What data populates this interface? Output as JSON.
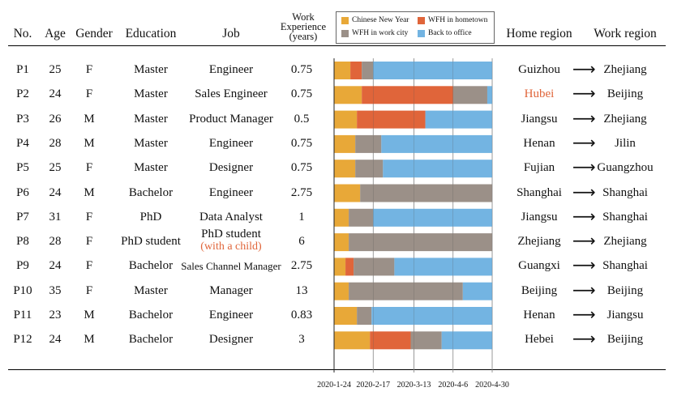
{
  "headers": {
    "no": "No.",
    "age": "Age",
    "gender": "Gender",
    "education": "Education",
    "job": "Job",
    "work_experience": [
      "Work",
      "Experience",
      "(years)"
    ],
    "home_region": "Home region",
    "work_region": "Work region"
  },
  "legend": [
    {
      "label": "Chinese New Year",
      "color": "#e8a838"
    },
    {
      "label": "WFH in hometown",
      "color": "#e0653a"
    },
    {
      "label": "WFH in work city",
      "color": "#9b9088"
    },
    {
      "label": "Back to office",
      "color": "#73b4e2"
    }
  ],
  "arrow_glyph": "⟶",
  "rows": [
    {
      "no": "P1",
      "age": "25",
      "gender": "F",
      "education": "Master",
      "job": "Engineer",
      "job_note": "",
      "exp": "0.75",
      "home": "Guizhou",
      "home_highlight": false,
      "work": "Zhejiang"
    },
    {
      "no": "P2",
      "age": "24",
      "gender": "F",
      "education": "Master",
      "job": "Sales Engineer",
      "job_note": "",
      "exp": "0.75",
      "home": "Hubei",
      "home_highlight": true,
      "work": "Beijing"
    },
    {
      "no": "P3",
      "age": "26",
      "gender": "M",
      "education": "Master",
      "job": "Product Manager",
      "job_note": "",
      "exp": "0.5",
      "home": "Jiangsu",
      "home_highlight": false,
      "work": "Zhejiang"
    },
    {
      "no": "P4",
      "age": "28",
      "gender": "M",
      "education": "Master",
      "job": "Engineer",
      "job_note": "",
      "exp": "0.75",
      "home": "Henan",
      "home_highlight": false,
      "work": "Jilin"
    },
    {
      "no": "P5",
      "age": "25",
      "gender": "F",
      "education": "Master",
      "job": "Designer",
      "job_note": "",
      "exp": "0.75",
      "home": "Fujian",
      "home_highlight": false,
      "work": "Guangzhou"
    },
    {
      "no": "P6",
      "age": "24",
      "gender": "M",
      "education": "Bachelor",
      "job": "Engineer",
      "job_note": "",
      "exp": "2.75",
      "home": "Shanghai",
      "home_highlight": false,
      "work": "Shanghai"
    },
    {
      "no": "P7",
      "age": "31",
      "gender": "F",
      "education": "PhD",
      "job": "Data Analyst",
      "job_note": "",
      "exp": "1",
      "home": "Jiangsu",
      "home_highlight": false,
      "work": "Shanghai"
    },
    {
      "no": "P8",
      "age": "28",
      "gender": "F",
      "education": "PhD student",
      "job": "PhD student",
      "job_note": "(with a child)",
      "exp": "6",
      "home": "Zhejiang",
      "home_highlight": false,
      "work": "Zhejiang"
    },
    {
      "no": "P9",
      "age": "24",
      "gender": "F",
      "education": "Bachelor",
      "job": "Sales Channel Manager",
      "job_note": "",
      "exp": "2.75",
      "home": "Guangxi",
      "home_highlight": false,
      "work": "Shanghai"
    },
    {
      "no": "P10",
      "age": "35",
      "gender": "F",
      "education": "Master",
      "job": "Manager",
      "job_note": "",
      "exp": "13",
      "home": "Beijing",
      "home_highlight": false,
      "work": "Beijing"
    },
    {
      "no": "P11",
      "age": "23",
      "gender": "M",
      "education": "Bachelor",
      "job": "Engineer",
      "job_note": "",
      "exp": "0.83",
      "home": "Henan",
      "home_highlight": false,
      "work": "Jiangsu"
    },
    {
      "no": "P12",
      "age": "24",
      "gender": "M",
      "education": "Bachelor",
      "job": "Designer",
      "job_note": "",
      "exp": "3",
      "home": "Hebei",
      "home_highlight": false,
      "work": "Beijing"
    }
  ],
  "chart_data": {
    "type": "bar",
    "stacked": true,
    "orientation": "horizontal",
    "x_ticks": [
      "2020-1-24",
      "2020-2-17",
      "2020-3-13",
      "2020-4-6",
      "2020-4-30"
    ],
    "x_range": [
      "2020-1-24",
      "2020-4-30"
    ],
    "categories": [
      "P1",
      "P2",
      "P3",
      "P4",
      "P5",
      "P6",
      "P7",
      "P8",
      "P9",
      "P10",
      "P11",
      "P12"
    ],
    "series_order": [
      "Chinese New Year",
      "WFH in hometown",
      "WFH in work city",
      "Back to office"
    ],
    "segments": [
      [
        [
          "Chinese New Year",
          "2020-1-24",
          "2020-2-3"
        ],
        [
          "WFH in hometown",
          "2020-2-3",
          "2020-2-10"
        ],
        [
          "WFH in work city",
          "2020-2-10",
          "2020-2-17"
        ],
        [
          "Back to office",
          "2020-2-17",
          "2020-4-30"
        ]
      ],
      [
        [
          "Chinese New Year",
          "2020-1-24",
          "2020-2-10"
        ],
        [
          "WFH in hometown",
          "2020-2-10",
          "2020-4-6"
        ],
        [
          "WFH in work city",
          "2020-4-6",
          "2020-4-27"
        ],
        [
          "Back to office",
          "2020-4-27",
          "2020-4-30"
        ]
      ],
      [
        [
          "Chinese New Year",
          "2020-1-24",
          "2020-2-7"
        ],
        [
          "WFH in hometown",
          "2020-2-7",
          "2020-3-20"
        ],
        [
          "Back to office",
          "2020-3-20",
          "2020-4-30"
        ]
      ],
      [
        [
          "Chinese New Year",
          "2020-1-24",
          "2020-2-6"
        ],
        [
          "WFH in work city",
          "2020-2-6",
          "2020-2-22"
        ],
        [
          "Back to office",
          "2020-2-22",
          "2020-4-30"
        ]
      ],
      [
        [
          "Chinese New Year",
          "2020-1-24",
          "2020-2-6"
        ],
        [
          "WFH in work city",
          "2020-2-6",
          "2020-2-23"
        ],
        [
          "Back to office",
          "2020-2-23",
          "2020-4-30"
        ]
      ],
      [
        [
          "Chinese New Year",
          "2020-1-24",
          "2020-2-9"
        ],
        [
          "WFH in work city",
          "2020-2-9",
          "2020-4-30"
        ]
      ],
      [
        [
          "Chinese New Year",
          "2020-1-24",
          "2020-2-2"
        ],
        [
          "WFH in work city",
          "2020-2-2",
          "2020-2-17"
        ],
        [
          "Back to office",
          "2020-2-17",
          "2020-4-30"
        ]
      ],
      [
        [
          "Chinese New Year",
          "2020-1-24",
          "2020-2-2"
        ],
        [
          "WFH in work city",
          "2020-2-2",
          "2020-4-30"
        ]
      ],
      [
        [
          "Chinese New Year",
          "2020-1-24",
          "2020-1-31"
        ],
        [
          "WFH in hometown",
          "2020-1-31",
          "2020-2-5"
        ],
        [
          "WFH in work city",
          "2020-2-5",
          "2020-3-1"
        ],
        [
          "Back to office",
          "2020-3-1",
          "2020-4-30"
        ]
      ],
      [
        [
          "Chinese New Year",
          "2020-1-24",
          "2020-2-2"
        ],
        [
          "WFH in work city",
          "2020-2-2",
          "2020-4-12"
        ],
        [
          "Back to office",
          "2020-4-12",
          "2020-4-30"
        ]
      ],
      [
        [
          "Chinese New Year",
          "2020-1-24",
          "2020-2-7"
        ],
        [
          "WFH in work city",
          "2020-2-7",
          "2020-2-16"
        ],
        [
          "Back to office",
          "2020-2-16",
          "2020-4-30"
        ]
      ],
      [
        [
          "Chinese New Year",
          "2020-1-24",
          "2020-2-15"
        ],
        [
          "WFH in hometown",
          "2020-2-15",
          "2020-3-11"
        ],
        [
          "WFH in work city",
          "2020-3-11",
          "2020-3-30"
        ],
        [
          "Back to office",
          "2020-3-30",
          "2020-4-30"
        ]
      ]
    ]
  }
}
